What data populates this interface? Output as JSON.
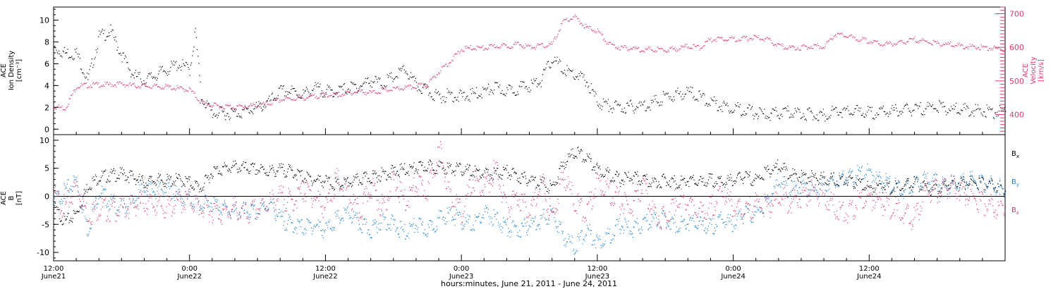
{
  "chart_data": [
    {
      "type": "scatter",
      "panel": "top",
      "title": "",
      "xlabel": "",
      "xlim": [
        0,
        84
      ],
      "left_axis": {
        "label_lines": [
          "ACE",
          "Ion Density",
          "[cm⁻³]"
        ],
        "ylim": [
          -0.5,
          11.2
        ],
        "ticks": [
          0,
          2,
          4,
          6,
          8,
          10
        ],
        "color": "#000000"
      },
      "right_axis": {
        "label_lines": [
          "ACE",
          "Velocity",
          "[km/s]"
        ],
        "ylim": [
          340,
          720
        ],
        "ticks": [
          400,
          500,
          600,
          700
        ],
        "color": "#e0386a"
      },
      "series": [
        {
          "axis": "left",
          "color": "#000000",
          "x": [
            0,
            1,
            2,
            3,
            4,
            5,
            6,
            7,
            8,
            9,
            10,
            11,
            12,
            12.5,
            13,
            14,
            15,
            16,
            17,
            18,
            19,
            20,
            21,
            22,
            23,
            24,
            25,
            26,
            27,
            28,
            29,
            30,
            31,
            32,
            33,
            34,
            35,
            36,
            37,
            38,
            39,
            40,
            41,
            42,
            43,
            44,
            45,
            46,
            47,
            48,
            49,
            50,
            51,
            52,
            53,
            54,
            55,
            56,
            57,
            58,
            59,
            60,
            61,
            62,
            63,
            64,
            65,
            66,
            67,
            68,
            69,
            70,
            71,
            72,
            73,
            74,
            75,
            76,
            77,
            78,
            79,
            80,
            81,
            82,
            83,
            84
          ],
          "y": [
            7.5,
            7,
            7,
            4.5,
            8.5,
            9,
            6.8,
            5,
            4.5,
            5,
            5.5,
            6,
            5.5,
            9,
            3,
            1.5,
            1.5,
            1.5,
            1.7,
            2,
            2.5,
            3.5,
            3.5,
            3.2,
            3.8,
            3.5,
            3.5,
            3.8,
            4,
            4.5,
            4.2,
            4.8,
            5.5,
            4,
            3.5,
            3,
            3.2,
            3,
            3.2,
            3.5,
            3.8,
            3.5,
            3.8,
            4,
            4.5,
            6.5,
            5.5,
            5,
            4.5,
            2.5,
            2.2,
            2,
            2.1,
            2.2,
            2.5,
            3,
            3.2,
            3.5,
            3,
            2.5,
            2.2,
            2,
            1.8,
            1.5,
            1.3,
            1.5,
            1.6,
            1.5,
            1.4,
            1.3,
            1.8,
            1.6,
            1.7,
            1.5,
            1.6,
            1.7,
            1.8,
            1.8,
            2.0,
            2.1,
            1.9,
            1.8,
            1.8,
            1.7,
            1.6,
            1.7
          ]
        },
        {
          "axis": "right",
          "color": "#e0386a",
          "x": [
            0,
            1,
            2,
            3,
            4,
            5,
            6,
            7,
            8,
            9,
            10,
            11,
            12,
            13,
            14,
            15,
            16,
            17,
            18,
            19,
            20,
            21,
            22,
            23,
            24,
            25,
            26,
            27,
            28,
            29,
            30,
            31,
            32,
            33,
            34,
            35,
            36,
            37,
            38,
            39,
            40,
            41,
            42,
            43,
            44,
            45,
            46,
            47,
            48,
            49,
            50,
            51,
            52,
            53,
            54,
            55,
            56,
            57,
            58,
            59,
            60,
            61,
            62,
            63,
            64,
            65,
            66,
            67,
            68,
            69,
            70,
            71,
            72,
            73,
            74,
            75,
            76,
            77,
            78,
            79,
            80,
            81,
            82,
            83,
            84
          ],
          "y": [
            425,
            420,
            485,
            488,
            490,
            490,
            492,
            487,
            486,
            484,
            483,
            478,
            475,
            437,
            428,
            425,
            424,
            425,
            427,
            433,
            445,
            448,
            450,
            455,
            460,
            460,
            465,
            470,
            465,
            472,
            476,
            480,
            485,
            490,
            530,
            560,
            595,
            600,
            598,
            605,
            605,
            610,
            602,
            605,
            610,
            680,
            690,
            660,
            650,
            610,
            600,
            598,
            594,
            595,
            593,
            597,
            605,
            600,
            625,
            628,
            626,
            627,
            630,
            624,
            605,
            600,
            600,
            605,
            605,
            640,
            635,
            625,
            620,
            610,
            612,
            615,
            625,
            618,
            612,
            610,
            605,
            603,
            600,
            598,
            595
          ]
        }
      ]
    },
    {
      "type": "scatter",
      "panel": "bottom",
      "title": "",
      "xlim": [
        0,
        84
      ],
      "left_axis": {
        "label_lines": [
          "ACE",
          "B",
          "[nT]"
        ],
        "ylim": [
          -11.5,
          11
        ],
        "ticks": [
          -10,
          -5,
          0,
          5,
          10
        ],
        "color": "#000000"
      },
      "zero_line": true,
      "legend": [
        {
          "label": "Bx",
          "main": "B",
          "sub": "x",
          "color": "#000000"
        },
        {
          "label": "By",
          "main": "B",
          "sub": "y",
          "color": "#1e82d2"
        },
        {
          "label": "Bz",
          "main": "B",
          "sub": "z",
          "color": "#e0386a"
        }
      ],
      "series": [
        {
          "name": "Bx",
          "color": "#000000",
          "x": [
            0,
            1,
            2,
            3,
            4,
            5,
            6,
            7,
            8,
            9,
            10,
            11,
            12,
            13,
            14,
            15,
            16,
            17,
            18,
            19,
            20,
            21,
            22,
            23,
            24,
            25,
            26,
            27,
            28,
            29,
            30,
            31,
            32,
            33,
            34,
            35,
            36,
            37,
            38,
            39,
            40,
            41,
            42,
            43,
            44,
            45,
            46,
            47,
            48,
            49,
            50,
            51,
            52,
            53,
            54,
            55,
            56,
            57,
            58,
            59,
            60,
            61,
            62,
            63,
            64,
            65,
            66,
            67,
            68,
            69,
            70,
            71,
            72,
            73,
            74,
            75,
            76,
            77,
            78,
            79,
            80,
            81,
            82,
            83,
            84
          ],
          "y": [
            -2,
            -4.5,
            -3,
            2,
            3.5,
            3.8,
            4.0,
            3.5,
            2.5,
            3,
            2.8,
            3,
            2.5,
            1.5,
            4.5,
            5,
            5.3,
            5.0,
            4.8,
            4.5,
            4.8,
            4.5,
            3.5,
            3,
            2.8,
            2,
            2.5,
            3,
            3.5,
            4,
            4.5,
            4.8,
            5,
            5.5,
            5.2,
            5,
            4.8,
            4.5,
            4,
            4,
            4.5,
            3.5,
            3,
            2.5,
            1.5,
            6,
            8,
            7,
            5,
            4,
            3,
            3.5,
            3,
            2.5,
            3,
            2.5,
            3,
            2.5,
            3,
            2.5,
            3,
            3.5,
            3,
            4.5,
            5.5,
            4,
            3.5,
            3.5,
            3.2,
            3,
            3,
            2.5,
            1.5,
            2,
            1.5,
            2,
            2.5,
            1.5,
            1,
            2.5,
            2.5,
            2.5,
            2.5,
            2,
            1.5
          ]
        },
        {
          "name": "By",
          "color": "#1e82d2",
          "x": [
            0,
            1,
            2,
            3,
            4,
            5,
            6,
            7,
            8,
            9,
            10,
            11,
            12,
            13,
            14,
            15,
            16,
            17,
            18,
            19,
            20,
            21,
            22,
            23,
            24,
            25,
            26,
            27,
            28,
            29,
            30,
            31,
            32,
            33,
            34,
            35,
            36,
            37,
            38,
            39,
            40,
            41,
            42,
            43,
            44,
            45,
            46,
            47,
            48,
            49,
            50,
            51,
            52,
            53,
            54,
            55,
            56,
            57,
            58,
            59,
            60,
            61,
            62,
            63,
            64,
            65,
            66,
            67,
            68,
            69,
            70,
            71,
            72,
            73,
            74,
            75,
            76,
            77,
            78,
            79,
            80,
            81,
            82,
            83,
            84
          ],
          "y": [
            -1,
            1,
            3,
            -6,
            1,
            -1,
            -2,
            -1,
            2,
            1,
            1.5,
            0,
            -0.5,
            -1.5,
            -1,
            -2,
            -3,
            -2.5,
            -3,
            -1,
            -4,
            -5,
            -5.5,
            -5,
            -6,
            -4,
            -3,
            -5,
            -6,
            -4,
            -5,
            -6.5,
            -5,
            -6,
            -4,
            -3,
            -4.5,
            -5,
            -3,
            -4,
            -5.5,
            -6,
            -5,
            -4,
            -3,
            -7,
            -9,
            -6,
            -8,
            -7,
            -5,
            -6,
            -5,
            -4,
            -4,
            -5,
            -4.5,
            -5,
            -5.5,
            -4,
            -5,
            -3,
            -3,
            -1,
            3,
            1,
            2,
            1,
            2,
            3,
            3.5,
            4,
            4.5,
            3,
            2,
            1,
            2,
            3,
            2.5,
            2,
            2.5,
            3,
            2.5,
            2,
            1.5
          ]
        },
        {
          "name": "Bz",
          "color": "#e0386a",
          "x": [
            0,
            1,
            2,
            3,
            4,
            5,
            6,
            7,
            8,
            9,
            10,
            11,
            12,
            13,
            14,
            15,
            16,
            17,
            18,
            19,
            20,
            21,
            22,
            23,
            24,
            25,
            26,
            27,
            28,
            29,
            30,
            31,
            32,
            33,
            34,
            35,
            36,
            37,
            38,
            39,
            40,
            41,
            42,
            43,
            44,
            45,
            46,
            47,
            48,
            49,
            50,
            51,
            52,
            53,
            54,
            55,
            56,
            57,
            58,
            59,
            60,
            61,
            62,
            63,
            64,
            65,
            66,
            67,
            68,
            69,
            70,
            71,
            72,
            73,
            74,
            75,
            76,
            77,
            78,
            79,
            80,
            81,
            82,
            83,
            84
          ],
          "y": [
            0,
            -2,
            2,
            -3,
            -2,
            -2.5,
            -2,
            -1.5,
            -1,
            -1.5,
            -2,
            -1,
            -0.5,
            -2,
            -2.5,
            -3,
            -2,
            -3.5,
            -2,
            -1,
            0,
            -1,
            1,
            0,
            -2,
            3,
            0,
            -3,
            2,
            -2,
            3,
            -1,
            2,
            1,
            9,
            0,
            -3,
            3,
            1,
            5,
            -2,
            0,
            -3,
            3,
            -4,
            4,
            -1,
            -3,
            3,
            1,
            -1,
            -2,
            2,
            -3,
            -4,
            0,
            -1,
            -3,
            -2,
            1,
            -2,
            -3,
            -1,
            -2,
            0,
            -1,
            0,
            1,
            0,
            -2,
            -3,
            -1,
            0,
            -1,
            -2,
            -3,
            -4,
            1,
            1,
            2,
            1,
            0,
            -1,
            -2,
            -1
          ]
        }
      ]
    },
    {
      "type": "axis",
      "x_ticks": [
        {
          "time": "12:00",
          "date": "June21",
          "hours": 0
        },
        {
          "time": "0:00",
          "date": "June22",
          "hours": 12
        },
        {
          "time": "12:00",
          "date": "June22",
          "hours": 24
        },
        {
          "time": "0:00",
          "date": "June23",
          "hours": 36
        },
        {
          "time": "12:00",
          "date": "June23",
          "hours": 48
        },
        {
          "time": "0:00",
          "date": "June24",
          "hours": 60
        },
        {
          "time": "12:00",
          "date": "June24",
          "hours": 72
        }
      ],
      "xlabel": "hours:minutes, June 21, 2011 - June 24, 2011"
    }
  ]
}
